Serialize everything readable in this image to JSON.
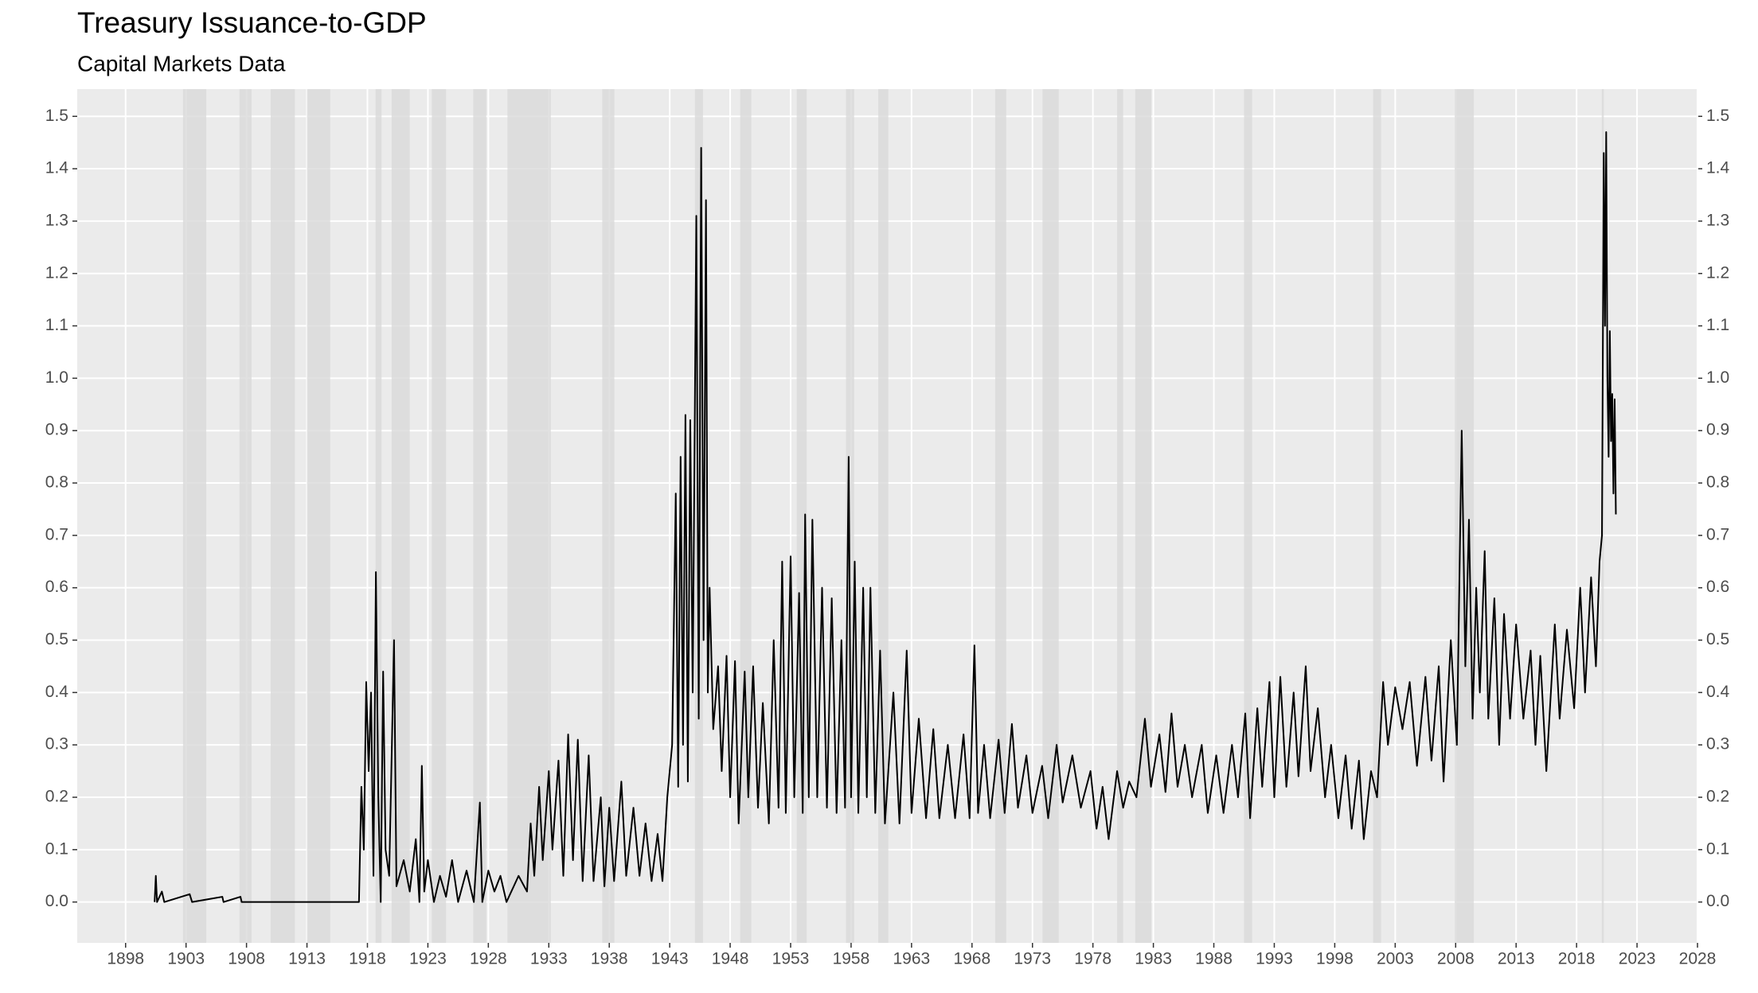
{
  "chart_data": {
    "type": "line",
    "title": "Treasury Issuance-to-GDP",
    "subtitle": "Capital Markets Data",
    "color": "#000000",
    "shade_color": "#d9d9d9",
    "grid": true,
    "secondary_axis": true,
    "xlim": [
      1894,
      2028
    ],
    "ylim": [
      -0.078,
      1.552
    ],
    "xticks": [
      1898,
      1903,
      1908,
      1913,
      1918,
      1923,
      1928,
      1933,
      1938,
      1943,
      1948,
      1953,
      1958,
      1963,
      1968,
      1973,
      1978,
      1983,
      1988,
      1993,
      1998,
      2003,
      2008,
      2013,
      2018,
      2023,
      2028
    ],
    "yticks": [
      {
        "value": 0,
        "label": "0.0"
      },
      0.1,
      0.2,
      0.3,
      0.4,
      0.5,
      0.6,
      0.7,
      0.8,
      0.9,
      {
        "value": 1,
        "label": "1.0"
      },
      1.1,
      1.2,
      1.3,
      1.4,
      1.5
    ],
    "shaded_periods": [
      [
        1902.75,
        1904.67
      ],
      [
        1907.42,
        1908.42
      ],
      [
        1910.0,
        1912.0
      ],
      [
        1913.0,
        1914.92
      ],
      [
        1918.67,
        1919.17
      ],
      [
        1920.0,
        1921.5
      ],
      [
        1923.33,
        1924.5
      ],
      [
        1926.75,
        1927.83
      ],
      [
        1929.58,
        1933.17
      ],
      [
        1937.42,
        1938.42
      ],
      [
        1945.08,
        1945.75
      ],
      [
        1948.83,
        1949.75
      ],
      [
        1953.5,
        1954.33
      ],
      [
        1957.58,
        1958.25
      ],
      [
        1960.25,
        1961.08
      ],
      [
        1969.92,
        1970.83
      ],
      [
        1973.83,
        1975.17
      ],
      [
        1980.0,
        1980.5
      ],
      [
        1981.5,
        1982.83
      ],
      [
        1990.5,
        1991.17
      ],
      [
        2001.17,
        2001.83
      ],
      [
        2007.92,
        2009.5
      ],
      [
        2020.08,
        2020.25
      ]
    ],
    "x": [
      1900.4,
      1900.5,
      1900.6,
      1901.0,
      1901.2,
      1903.3,
      1903.5,
      1906.0,
      1906.1,
      1907.5,
      1907.6,
      1917.3,
      1917.5,
      1917.7,
      1917.9,
      1918.1,
      1918.3,
      1918.5,
      1918.7,
      1918.9,
      1919.1,
      1919.3,
      1919.5,
      1919.8,
      1920.2,
      1920.4,
      1921,
      1921.5,
      1922,
      1922.3,
      1922.5,
      1922.7,
      1923,
      1923.5,
      1924,
      1924.5,
      1925,
      1925.5,
      1926.2,
      1926.8,
      1927.3,
      1927.5,
      1928,
      1928.5,
      1929,
      1929.5,
      1930.5,
      1931.2,
      1931.5,
      1931.8,
      1932.2,
      1932.5,
      1933,
      1933.3,
      1933.8,
      1934.2,
      1934.6,
      1935,
      1935.4,
      1935.8,
      1936.3,
      1936.7,
      1937.3,
      1937.6,
      1938,
      1938.4,
      1939,
      1939.4,
      1940,
      1940.5,
      1941,
      1941.5,
      1942,
      1942.4,
      1942.8,
      1943.2,
      1943.5,
      1943.7,
      1943.9,
      1944.1,
      1944.3,
      1944.5,
      1944.7,
      1944.9,
      1945.2,
      1945.4,
      1945.6,
      1945.8,
      1946,
      1946.15,
      1946.3,
      1946.6,
      1947,
      1947.3,
      1947.7,
      1948,
      1948.4,
      1948.7,
      1949.2,
      1949.5,
      1949.9,
      1950.3,
      1950.7,
      1951.2,
      1951.6,
      1952,
      1952.3,
      1952.6,
      1953,
      1953.3,
      1953.7,
      1954,
      1954.2,
      1954.5,
      1954.8,
      1955.2,
      1955.6,
      1956,
      1956.4,
      1956.8,
      1957.2,
      1957.5,
      1957.8,
      1958,
      1958.3,
      1958.6,
      1959,
      1959.3,
      1959.6,
      1960,
      1960.4,
      1960.8,
      1961.5,
      1962,
      1962.6,
      1963,
      1963.6,
      1964.2,
      1964.8,
      1965.3,
      1966,
      1966.6,
      1967.3,
      1967.8,
      1968.2,
      1968.5,
      1969,
      1969.5,
      1970.2,
      1970.7,
      1971.3,
      1971.8,
      1972.5,
      1973,
      1973.8,
      1974.3,
      1975,
      1975.5,
      1976.3,
      1977,
      1977.8,
      1978.3,
      1978.8,
      1979.3,
      1980,
      1980.5,
      1981,
      1981.6,
      1982.3,
      1982.8,
      1983.5,
      1984,
      1984.5,
      1985,
      1985.6,
      1986.2,
      1987,
      1987.5,
      1988.2,
      1988.8,
      1989.5,
      1990,
      1990.6,
      1991,
      1991.6,
      1992,
      1992.6,
      1993,
      1993.5,
      1994,
      1994.6,
      1995,
      1995.6,
      1996,
      1996.6,
      1997.2,
      1997.7,
      1998.3,
      1998.9,
      1999.4,
      2000,
      2000.4,
      2001,
      2001.5,
      2002,
      2002.4,
      2003,
      2003.6,
      2004.2,
      2004.8,
      2005.5,
      2006,
      2006.6,
      2007,
      2007.6,
      2008.1,
      2008.5,
      2008.8,
      2009.1,
      2009.4,
      2009.7,
      2010,
      2010.4,
      2010.7,
      2011.2,
      2011.6,
      2012,
      2012.5,
      2013,
      2013.6,
      2014.2,
      2014.6,
      2015,
      2015.5,
      2016.2,
      2016.6,
      2017.2,
      2017.8,
      2018.3,
      2018.7,
      2019.2,
      2019.6,
      2019.9,
      2020.1,
      2020.25,
      2020.35,
      2020.45,
      2020.55,
      2020.65,
      2020.75,
      2020.85,
      2020.95,
      2021.05,
      2021.15,
      2021.25
    ],
    "values": [
      0,
      0.05,
      0,
      0.02,
      0,
      0.015,
      0,
      0.01,
      0,
      0.01,
      0,
      0,
      0.22,
      0.1,
      0.42,
      0.25,
      0.4,
      0.05,
      0.63,
      0.2,
      0,
      0.44,
      0.1,
      0.05,
      0.5,
      0.03,
      0.08,
      0.02,
      0.12,
      0,
      0.26,
      0.02,
      0.08,
      0,
      0.05,
      0.01,
      0.08,
      0,
      0.06,
      0,
      0.19,
      0,
      0.06,
      0.02,
      0.05,
      0,
      0.05,
      0.02,
      0.15,
      0.05,
      0.22,
      0.08,
      0.25,
      0.1,
      0.27,
      0.05,
      0.32,
      0.08,
      0.31,
      0.04,
      0.28,
      0.04,
      0.2,
      0.03,
      0.18,
      0.04,
      0.23,
      0.05,
      0.18,
      0.05,
      0.15,
      0.04,
      0.13,
      0.04,
      0.2,
      0.3,
      0.78,
      0.22,
      0.85,
      0.3,
      0.93,
      0.23,
      0.92,
      0.4,
      1.31,
      0.35,
      1.44,
      0.5,
      1.34,
      0.4,
      0.6,
      0.33,
      0.45,
      0.25,
      0.47,
      0.2,
      0.46,
      0.15,
      0.44,
      0.2,
      0.45,
      0.18,
      0.38,
      0.15,
      0.5,
      0.18,
      0.65,
      0.17,
      0.66,
      0.2,
      0.59,
      0.17,
      0.74,
      0.2,
      0.73,
      0.2,
      0.6,
      0.18,
      0.58,
      0.17,
      0.5,
      0.18,
      0.85,
      0.2,
      0.65,
      0.17,
      0.6,
      0.2,
      0.6,
      0.17,
      0.48,
      0.15,
      0.4,
      0.15,
      0.48,
      0.17,
      0.35,
      0.16,
      0.33,
      0.16,
      0.3,
      0.16,
      0.32,
      0.16,
      0.49,
      0.17,
      0.3,
      0.16,
      0.31,
      0.17,
      0.34,
      0.18,
      0.28,
      0.17,
      0.26,
      0.16,
      0.3,
      0.19,
      0.28,
      0.18,
      0.25,
      0.14,
      0.22,
      0.12,
      0.25,
      0.18,
      0.23,
      0.2,
      0.35,
      0.22,
      0.32,
      0.21,
      0.36,
      0.22,
      0.3,
      0.2,
      0.3,
      0.17,
      0.28,
      0.17,
      0.3,
      0.2,
      0.36,
      0.16,
      0.37,
      0.22,
      0.42,
      0.2,
      0.43,
      0.22,
      0.4,
      0.24,
      0.45,
      0.25,
      0.37,
      0.2,
      0.3,
      0.16,
      0.28,
      0.14,
      0.27,
      0.12,
      0.25,
      0.2,
      0.42,
      0.3,
      0.41,
      0.33,
      0.42,
      0.26,
      0.43,
      0.27,
      0.45,
      0.23,
      0.5,
      0.3,
      0.9,
      0.45,
      0.73,
      0.35,
      0.6,
      0.4,
      0.67,
      0.35,
      0.58,
      0.3,
      0.55,
      0.35,
      0.53,
      0.35,
      0.48,
      0.3,
      0.47,
      0.25,
      0.53,
      0.35,
      0.52,
      0.37,
      0.6,
      0.4,
      0.62,
      0.45,
      0.65,
      0.7,
      1.43,
      1.1,
      1.47,
      1.0,
      0.85,
      1.09,
      0.88,
      0.97,
      0.78,
      0.96,
      0.74
    ]
  }
}
